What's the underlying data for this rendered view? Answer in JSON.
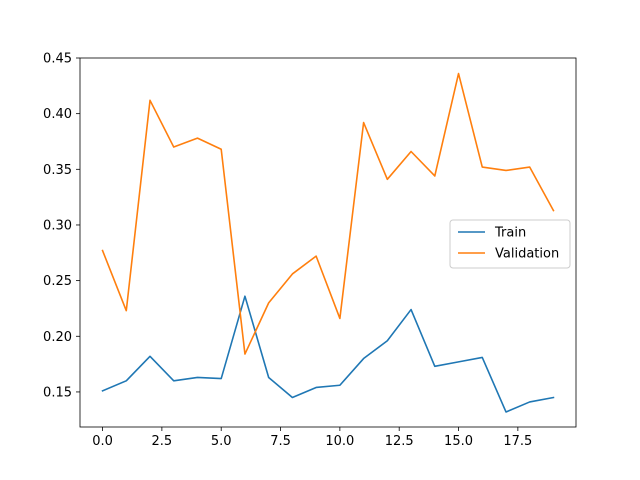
{
  "chart_data": {
    "type": "line",
    "title": "",
    "xlabel": "",
    "ylabel": "",
    "xlim": [
      -0.95,
      19.95
    ],
    "ylim": [
      0.1185,
      0.45
    ],
    "xticks": [
      0,
      2.5,
      5,
      7.5,
      10,
      12.5,
      15,
      17.5
    ],
    "xtick_labels": [
      "0.0",
      "2.5",
      "5.0",
      "7.5",
      "10.0",
      "12.5",
      "15.0",
      "17.5"
    ],
    "yticks": [
      0.15,
      0.2,
      0.25,
      0.3,
      0.35,
      0.4,
      0.45
    ],
    "ytick_labels": [
      "0.15",
      "0.20",
      "0.25",
      "0.30",
      "0.35",
      "0.40",
      "0.45"
    ],
    "grid": false,
    "legend_position": "center-right",
    "x": [
      0,
      1,
      2,
      3,
      4,
      5,
      6,
      7,
      8,
      9,
      10,
      11,
      12,
      13,
      14,
      15,
      16,
      17,
      18,
      19
    ],
    "series": [
      {
        "name": "Train",
        "color": "#1f77b4",
        "values": [
          0.151,
          0.16,
          0.182,
          0.16,
          0.163,
          0.162,
          0.236,
          0.163,
          0.145,
          0.154,
          0.156,
          0.18,
          0.196,
          0.224,
          0.173,
          0.177,
          0.181,
          0.132,
          0.141,
          0.145
        ]
      },
      {
        "name": "Validation",
        "color": "#ff7f0e",
        "values": [
          0.277,
          0.223,
          0.412,
          0.37,
          0.378,
          0.368,
          0.184,
          0.23,
          0.256,
          0.272,
          0.216,
          0.392,
          0.341,
          0.366,
          0.344,
          0.436,
          0.352,
          0.349,
          0.352,
          0.313
        ]
      }
    ]
  }
}
